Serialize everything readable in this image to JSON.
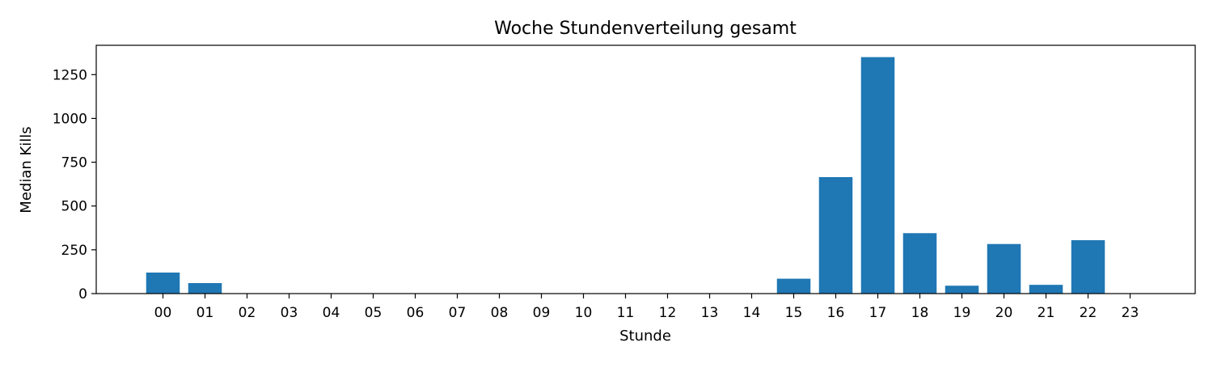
{
  "colors": {
    "bar": "#1f77b4"
  },
  "chart_data": {
    "type": "bar",
    "title": "Woche Stundenverteilung gesamt",
    "xlabel": "Stunde",
    "ylabel": "Median Kills",
    "categories": [
      "00",
      "01",
      "02",
      "03",
      "04",
      "05",
      "06",
      "07",
      "08",
      "09",
      "10",
      "11",
      "12",
      "13",
      "14",
      "15",
      "16",
      "17",
      "18",
      "19",
      "20",
      "21",
      "22",
      "23"
    ],
    "values": [
      120,
      60,
      0,
      0,
      0,
      0,
      0,
      0,
      0,
      0,
      0,
      0,
      0,
      0,
      0,
      85,
      665,
      1350,
      345,
      45,
      283,
      50,
      305,
      0
    ],
    "yticks": [
      0,
      250,
      500,
      750,
      1000,
      1250
    ],
    "ylim": [
      0,
      1417.5
    ],
    "grid": false,
    "legend": "none"
  }
}
